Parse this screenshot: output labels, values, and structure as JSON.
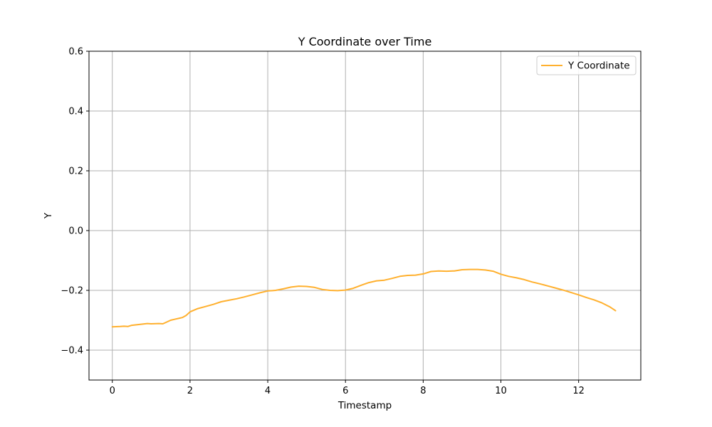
{
  "chart_data": {
    "type": "line",
    "title": "Y Coordinate over Time",
    "xlabel": "Timestamp",
    "ylabel": "Y",
    "xlim": [
      -0.6,
      13.6
    ],
    "ylim": [
      -0.5,
      0.6
    ],
    "xticks": [
      0,
      2,
      4,
      6,
      8,
      10,
      12
    ],
    "xtick_labels": [
      "0",
      "2",
      "4",
      "6",
      "8",
      "10",
      "12"
    ],
    "yticks": [
      -0.4,
      -0.2,
      0.0,
      0.2,
      0.4,
      0.6
    ],
    "ytick_labels": [
      "−0.4",
      "−0.2",
      "0.0",
      "0.2",
      "0.4",
      "0.6"
    ],
    "grid": true,
    "legend_position": "top-right",
    "series": [
      {
        "name": "Y Coordinate",
        "color": "#ffb02e",
        "x": [
          0,
          0.2,
          0.3,
          0.4,
          0.5,
          0.7,
          0.9,
          1.0,
          1.2,
          1.3,
          1.4,
          1.5,
          1.6,
          1.8,
          1.9,
          2.0,
          2.2,
          2.4,
          2.6,
          2.8,
          3.0,
          3.2,
          3.4,
          3.6,
          3.8,
          4.0,
          4.2,
          4.4,
          4.6,
          4.8,
          5.0,
          5.2,
          5.4,
          5.6,
          5.8,
          6.0,
          6.2,
          6.4,
          6.6,
          6.8,
          7.0,
          7.2,
          7.4,
          7.6,
          7.8,
          8.0,
          8.2,
          8.4,
          8.6,
          8.8,
          9.0,
          9.2,
          9.4,
          9.6,
          9.8,
          10.0,
          10.2,
          10.4,
          10.6,
          10.8,
          11.0,
          11.2,
          11.4,
          11.6,
          11.8,
          12.0,
          12.2,
          12.4,
          12.6,
          12.8,
          12.95
        ],
        "y": [
          -0.322,
          -0.321,
          -0.32,
          -0.321,
          -0.317,
          -0.314,
          -0.311,
          -0.312,
          -0.311,
          -0.312,
          -0.306,
          -0.3,
          -0.297,
          -0.291,
          -0.284,
          -0.272,
          -0.261,
          -0.254,
          -0.247,
          -0.238,
          -0.233,
          -0.228,
          -0.222,
          -0.215,
          -0.208,
          -0.202,
          -0.2,
          -0.195,
          -0.189,
          -0.186,
          -0.187,
          -0.19,
          -0.197,
          -0.2,
          -0.201,
          -0.199,
          -0.193,
          -0.183,
          -0.174,
          -0.168,
          -0.166,
          -0.16,
          -0.153,
          -0.15,
          -0.149,
          -0.145,
          -0.137,
          -0.135,
          -0.136,
          -0.135,
          -0.131,
          -0.13,
          -0.13,
          -0.132,
          -0.136,
          -0.146,
          -0.153,
          -0.158,
          -0.164,
          -0.172,
          -0.178,
          -0.185,
          -0.192,
          -0.199,
          -0.207,
          -0.215,
          -0.224,
          -0.232,
          -0.242,
          -0.255,
          -0.268
        ]
      }
    ]
  }
}
